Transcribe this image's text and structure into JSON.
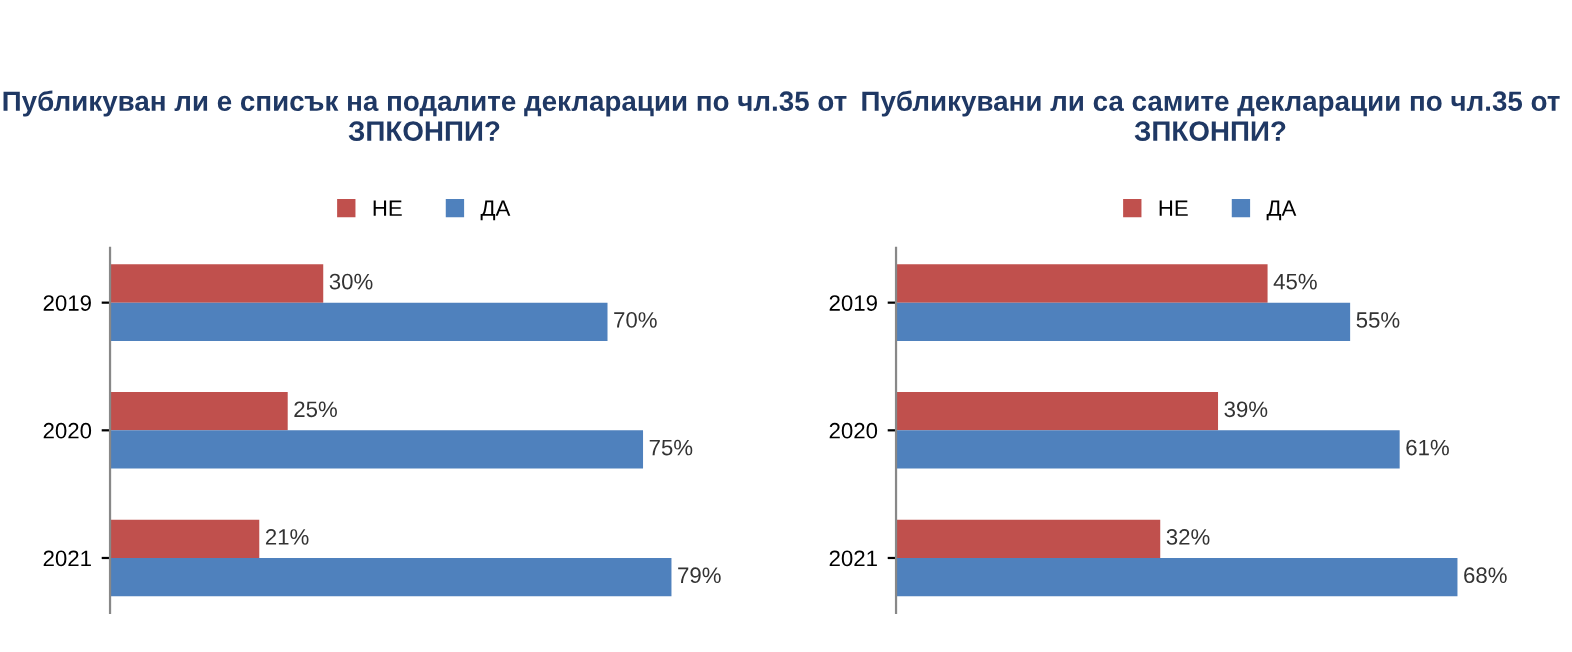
{
  "chart_data": [
    {
      "type": "bar",
      "orientation": "horizontal",
      "title": "Публикуван ли е списък на подалите декларации по чл.35 от ЗПКОНПИ?",
      "categories": [
        "2019",
        "2020",
        "2021"
      ],
      "series": [
        {
          "name": "НЕ",
          "color": "#c0504d",
          "values": [
            30,
            25,
            21
          ],
          "value_labels": [
            "30%",
            "25%",
            "21%"
          ]
        },
        {
          "name": "ДА",
          "color": "#4f81bd",
          "values": [
            70,
            75,
            79
          ],
          "value_labels": [
            "70%",
            "75%",
            "79%"
          ]
        }
      ],
      "legend": "top",
      "tick_labels": "y"
    },
    {
      "type": "bar",
      "orientation": "horizontal",
      "title": "Публикувани ли са самите декларации по чл.35 от ЗПКОНПИ?",
      "categories": [
        "2019",
        "2020",
        "2021"
      ],
      "series": [
        {
          "name": "НЕ",
          "color": "#c0504d",
          "values": [
            45,
            39,
            32
          ],
          "value_labels": [
            "45%",
            "39%",
            "32%"
          ]
        },
        {
          "name": "ДА",
          "color": "#4f81bd",
          "values": [
            55,
            61,
            68
          ],
          "value_labels": [
            "55%",
            "61%",
            "68%"
          ]
        }
      ],
      "legend": "top",
      "tick_labels": "y"
    }
  ]
}
